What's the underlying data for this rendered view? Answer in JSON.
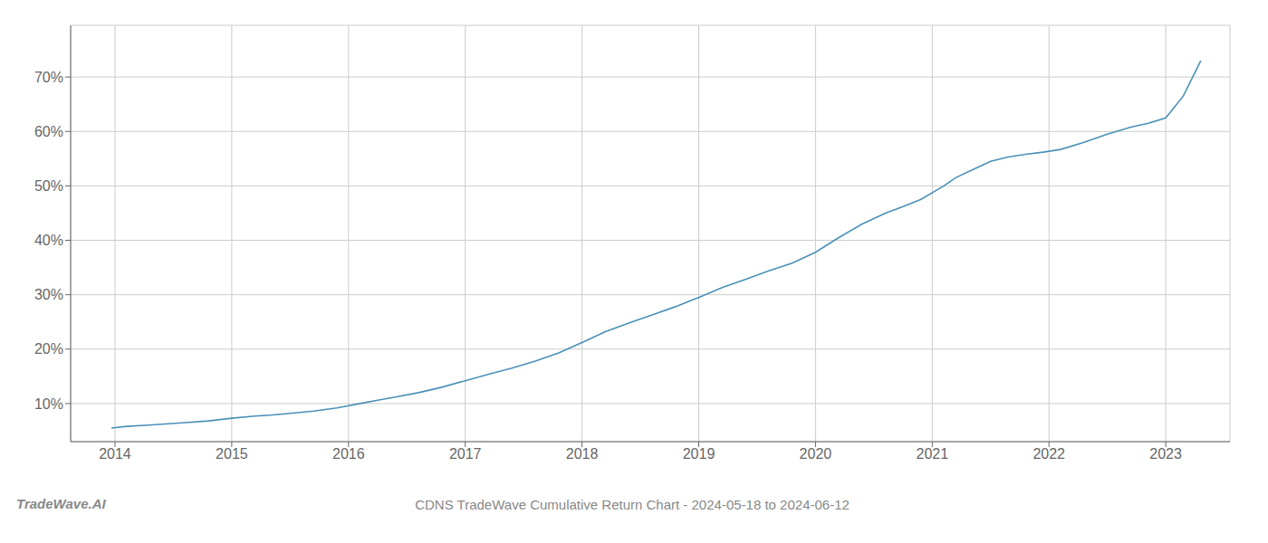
{
  "chart_data": {
    "type": "line",
    "title": "CDNS TradeWave Cumulative Return Chart - 2024-05-18 to 2024-06-12",
    "annotations": [
      "TradeWave.AI"
    ],
    "x": [
      2013.97,
      2014.1,
      2014.25,
      2014.4,
      2014.6,
      2014.8,
      2015.0,
      2015.2,
      2015.35,
      2015.5,
      2015.7,
      2015.9,
      2016.1,
      2016.25,
      2016.4,
      2016.6,
      2016.8,
      2017.0,
      2017.2,
      2017.4,
      2017.6,
      2017.8,
      2018.0,
      2018.2,
      2018.4,
      2018.6,
      2018.8,
      2019.0,
      2019.2,
      2019.4,
      2019.6,
      2019.8,
      2020.0,
      2020.2,
      2020.4,
      2020.6,
      2020.75,
      2020.9,
      2021.1,
      2021.2,
      2021.35,
      2021.5,
      2021.65,
      2021.8,
      2021.95,
      2022.1,
      2022.3,
      2022.5,
      2022.7,
      2022.85,
      2023.0,
      2023.15,
      2023.3
    ],
    "values": [
      0.055,
      0.058,
      0.06,
      0.062,
      0.065,
      0.068,
      0.073,
      0.077,
      0.079,
      0.082,
      0.086,
      0.092,
      0.1,
      0.106,
      0.112,
      0.12,
      0.13,
      0.142,
      0.154,
      0.165,
      0.178,
      0.193,
      0.212,
      0.232,
      0.248,
      0.263,
      0.278,
      0.295,
      0.313,
      0.328,
      0.344,
      0.358,
      0.378,
      0.405,
      0.43,
      0.45,
      0.462,
      0.475,
      0.5,
      0.515,
      0.53,
      0.545,
      0.553,
      0.558,
      0.562,
      0.567,
      0.58,
      0.595,
      0.608,
      0.615,
      0.625,
      0.665,
      0.73
    ],
    "color": "#4a90b8",
    "xlim": [
      2013.62,
      2023.55
    ],
    "ylim": [
      0.03,
      0.795
    ],
    "xticks": [
      2014,
      2015,
      2016,
      2017,
      2018,
      2019,
      2020,
      2021,
      2022,
      2023
    ],
    "yticks": [
      {
        "value": 0.1,
        "label": "10%"
      },
      {
        "value": 0.2,
        "label": "20%"
      },
      {
        "value": 0.3,
        "label": "30%"
      },
      {
        "value": 0.4,
        "label": "40%"
      },
      {
        "value": 0.5,
        "label": "50%"
      },
      {
        "value": 0.6,
        "label": "60%"
      },
      {
        "value": 0.7,
        "label": "70%"
      }
    ],
    "grid": true
  }
}
